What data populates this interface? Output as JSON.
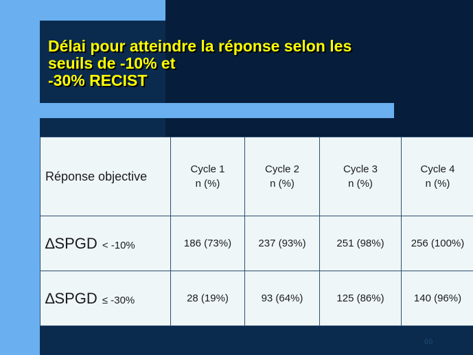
{
  "slide": {
    "title_lines": [
      "Délai pour atteindre la réponse selon les",
      "seuils de -10% et",
      "-30% RECIST"
    ],
    "page_number": "60"
  },
  "table": {
    "header": {
      "label": "Réponse objective",
      "cycles": [
        {
          "name": "Cycle 1",
          "unit": "n (%)"
        },
        {
          "name": "Cycle 2",
          "unit": "n (%)"
        },
        {
          "name": "Cycle 3",
          "unit": "n (%)"
        },
        {
          "name": "Cycle 4",
          "unit": "n (%)"
        }
      ]
    },
    "rows": [
      {
        "label": "∆SPGD",
        "threshold": "< -10%",
        "values": [
          "186 (73%)",
          "237 (93%)",
          "251 (98%)",
          "256 (100%)"
        ]
      },
      {
        "label": "∆SPGD",
        "threshold": "≤ -30%",
        "values": [
          "28 (19%)",
          "93 (64%)",
          "125 (86%)",
          "140 (96%)"
        ]
      }
    ]
  },
  "colors": {
    "background_dark": "#0b2b4e",
    "background_light": "#6ab0f0",
    "title": "#ffff00",
    "cell": "#eef6f8"
  }
}
